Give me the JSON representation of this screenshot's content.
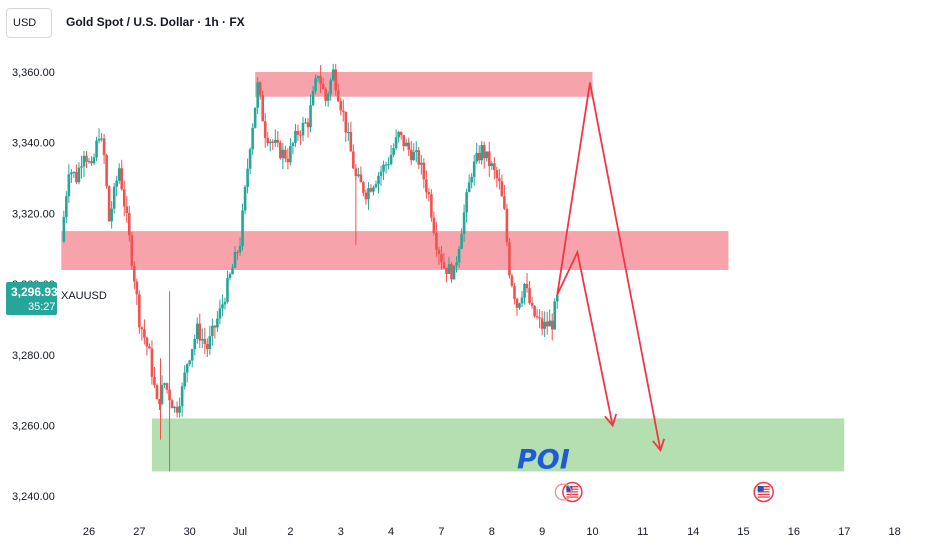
{
  "header": {
    "currency": "USD",
    "title": "Gold Spot / U.S. Dollar · 1h · FX"
  },
  "price_badge": {
    "price": "3,296.93",
    "timer": "35:27",
    "symbol": "XAUUSD"
  },
  "colors": {
    "up": "#26a69a",
    "down": "#ef5350",
    "resistance_zone": "#f7a3ab",
    "support_zone": "#b4dfb0",
    "arrow": "#f23645",
    "poi_text": "#1f5ad8",
    "badge": "#26a69a"
  },
  "chart_data": {
    "type": "candlestick",
    "y_axis": {
      "ticks": [
        "3,360.00",
        "3,340.00",
        "3,320.00",
        "3,300.00",
        "3,280.00",
        "3,260.00",
        "3,240.00"
      ],
      "tick_values": [
        3360,
        3340,
        3320,
        3300,
        3280,
        3260,
        3240
      ],
      "range": [
        3236,
        3368
      ]
    },
    "x_axis": {
      "ticks": [
        "26",
        "27",
        "30",
        "Jul",
        "2",
        "3",
        "4",
        "7",
        "8",
        "9",
        "10",
        "11",
        "14",
        "15",
        "16",
        "17",
        "18"
      ],
      "tick_index": [
        0,
        1,
        2,
        3,
        4,
        5,
        6,
        7,
        8,
        9,
        10,
        11,
        12,
        13,
        14,
        15,
        16
      ],
      "index_range": [
        -0.6,
        16.1
      ]
    },
    "price_path": [
      {
        "t": -0.55,
        "p": 3312
      },
      {
        "t": -0.4,
        "p": 3333
      },
      {
        "t": -0.25,
        "p": 3330
      },
      {
        "t": -0.1,
        "p": 3338
      },
      {
        "t": 0.05,
        "p": 3332
      },
      {
        "t": 0.2,
        "p": 3343
      },
      {
        "t": 0.3,
        "p": 3336
      },
      {
        "t": 0.4,
        "p": 3318
      },
      {
        "t": 0.6,
        "p": 3333
      },
      {
        "t": 0.75,
        "p": 3318
      },
      {
        "t": 0.9,
        "p": 3302
      },
      {
        "t": 1.0,
        "p": 3290
      },
      {
        "t": 1.2,
        "p": 3280
      },
      {
        "t": 1.35,
        "p": 3266
      },
      {
        "t": 1.5,
        "p": 3272
      },
      {
        "t": 1.72,
        "p": 3264
      },
      {
        "t": 1.85,
        "p": 3270
      },
      {
        "t": 1.95,
        "p": 3278
      },
      {
        "t": 2.15,
        "p": 3287
      },
      {
        "t": 2.35,
        "p": 3282
      },
      {
        "t": 2.6,
        "p": 3292
      },
      {
        "t": 2.8,
        "p": 3302
      },
      {
        "t": 3.0,
        "p": 3312
      },
      {
        "t": 3.2,
        "p": 3340
      },
      {
        "t": 3.35,
        "p": 3356
      },
      {
        "t": 3.5,
        "p": 3343
      },
      {
        "t": 3.75,
        "p": 3338
      },
      {
        "t": 3.95,
        "p": 3336
      },
      {
        "t": 4.15,
        "p": 3343
      },
      {
        "t": 4.35,
        "p": 3346
      },
      {
        "t": 4.55,
        "p": 3360
      },
      {
        "t": 4.7,
        "p": 3352
      },
      {
        "t": 4.85,
        "p": 3360
      },
      {
        "t": 5.05,
        "p": 3348
      },
      {
        "t": 5.3,
        "p": 3330
      },
      {
        "t": 5.5,
        "p": 3326
      },
      {
        "t": 5.7,
        "p": 3330
      },
      {
        "t": 5.95,
        "p": 3335
      },
      {
        "t": 6.15,
        "p": 3342
      },
      {
        "t": 6.35,
        "p": 3338
      },
      {
        "t": 6.55,
        "p": 3335
      },
      {
        "t": 6.75,
        "p": 3325
      },
      {
        "t": 6.9,
        "p": 3312
      },
      {
        "t": 7.05,
        "p": 3305
      },
      {
        "t": 7.25,
        "p": 3303
      },
      {
        "t": 7.4,
        "p": 3316
      },
      {
        "t": 7.6,
        "p": 3332
      },
      {
        "t": 7.8,
        "p": 3338
      },
      {
        "t": 8.0,
        "p": 3333
      },
      {
        "t": 8.15,
        "p": 3328
      },
      {
        "t": 8.25,
        "p": 3320
      },
      {
        "t": 8.35,
        "p": 3304
      },
      {
        "t": 8.5,
        "p": 3294
      },
      {
        "t": 8.65,
        "p": 3300
      },
      {
        "t": 8.8,
        "p": 3292
      },
      {
        "t": 9.0,
        "p": 3288
      },
      {
        "t": 9.2,
        "p": 3289
      },
      {
        "t": 9.3,
        "p": 3296.9
      }
    ],
    "zones": [
      {
        "kind": "resistance",
        "t_start": 3.3,
        "t_end": 10.0,
        "p_low": 3353,
        "p_high": 3360
      },
      {
        "kind": "resistance",
        "t_start": -0.55,
        "t_end": 12.7,
        "p_low": 3304,
        "p_high": 3315
      },
      {
        "kind": "support",
        "t_start": 1.25,
        "t_end": 15.0,
        "p_low": 3247,
        "p_high": 3262
      }
    ],
    "annotations": [
      {
        "kind": "path_arrow",
        "points": [
          [
            9.3,
            3297
          ],
          [
            9.7,
            3309
          ],
          [
            10.4,
            3260
          ]
        ]
      },
      {
        "kind": "path_arrow",
        "points": [
          [
            9.3,
            3297
          ],
          [
            9.95,
            3357
          ],
          [
            11.35,
            3253
          ]
        ]
      }
    ],
    "poi_label": "POI",
    "event_markers": [
      9.6,
      13.4
    ],
    "last_price": 3296.93
  }
}
